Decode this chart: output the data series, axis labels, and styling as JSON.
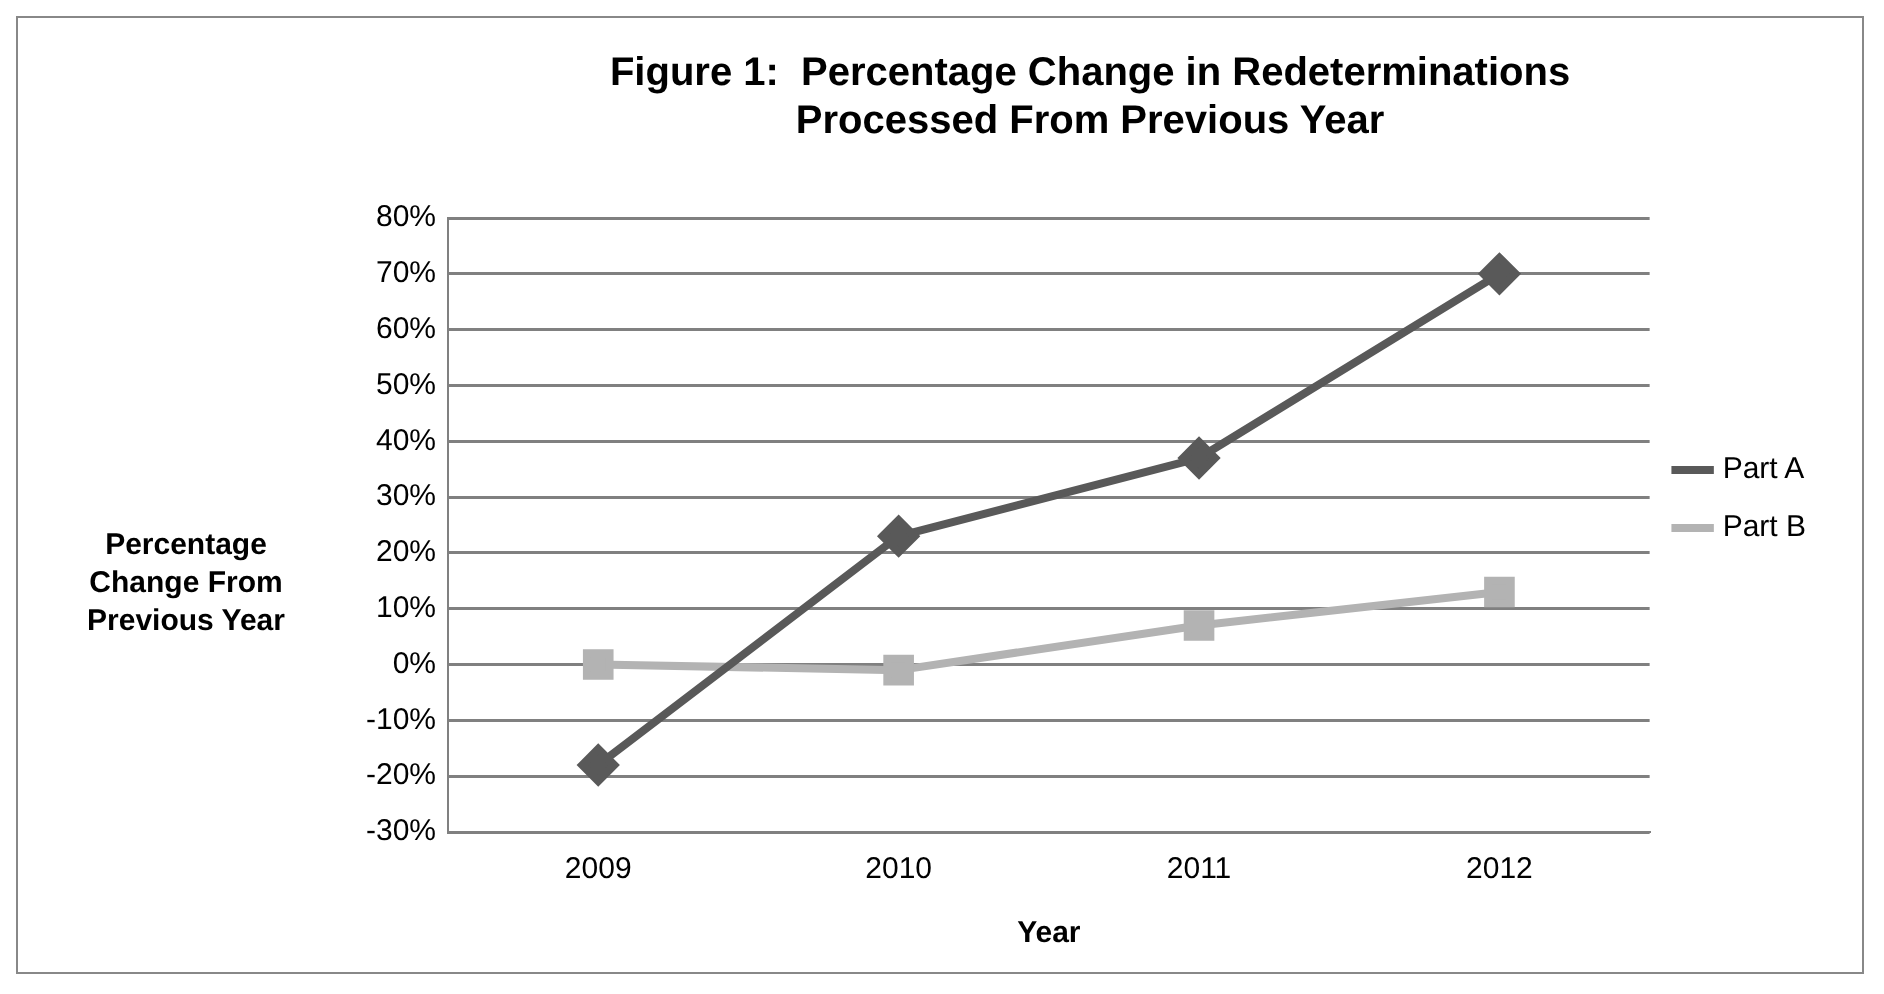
{
  "chart_data": {
    "type": "line",
    "title": "Figure 1:  Percentage Change in Redeterminations\nProcessed From Previous Year",
    "xlabel": "Year",
    "ylabel": "Percentage\nChange From\nPrevious Year",
    "categories": [
      "2009",
      "2010",
      "2011",
      "2012"
    ],
    "series": [
      {
        "name": "Part A",
        "color": "#595959",
        "marker": "diamond",
        "values": [
          -18,
          23,
          37,
          70
        ]
      },
      {
        "name": "Part B",
        "color": "#b3b3b3",
        "marker": "square",
        "values": [
          0,
          -1,
          7,
          13
        ]
      }
    ],
    "ylim": [
      -30,
      80
    ],
    "yticks": [
      {
        "value": -30,
        "label": "-30%"
      },
      {
        "value": -20,
        "label": "-20%"
      },
      {
        "value": -10,
        "label": "-10%"
      },
      {
        "value": 0,
        "label": "0%"
      },
      {
        "value": 10,
        "label": "10%"
      },
      {
        "value": 20,
        "label": "20%"
      },
      {
        "value": 30,
        "label": "30%"
      },
      {
        "value": 40,
        "label": "40%"
      },
      {
        "value": 50,
        "label": "50%"
      },
      {
        "value": 60,
        "label": "60%"
      },
      {
        "value": 70,
        "label": "70%"
      },
      {
        "value": 80,
        "label": "80%"
      }
    ],
    "grid": "y",
    "legend": "right"
  }
}
